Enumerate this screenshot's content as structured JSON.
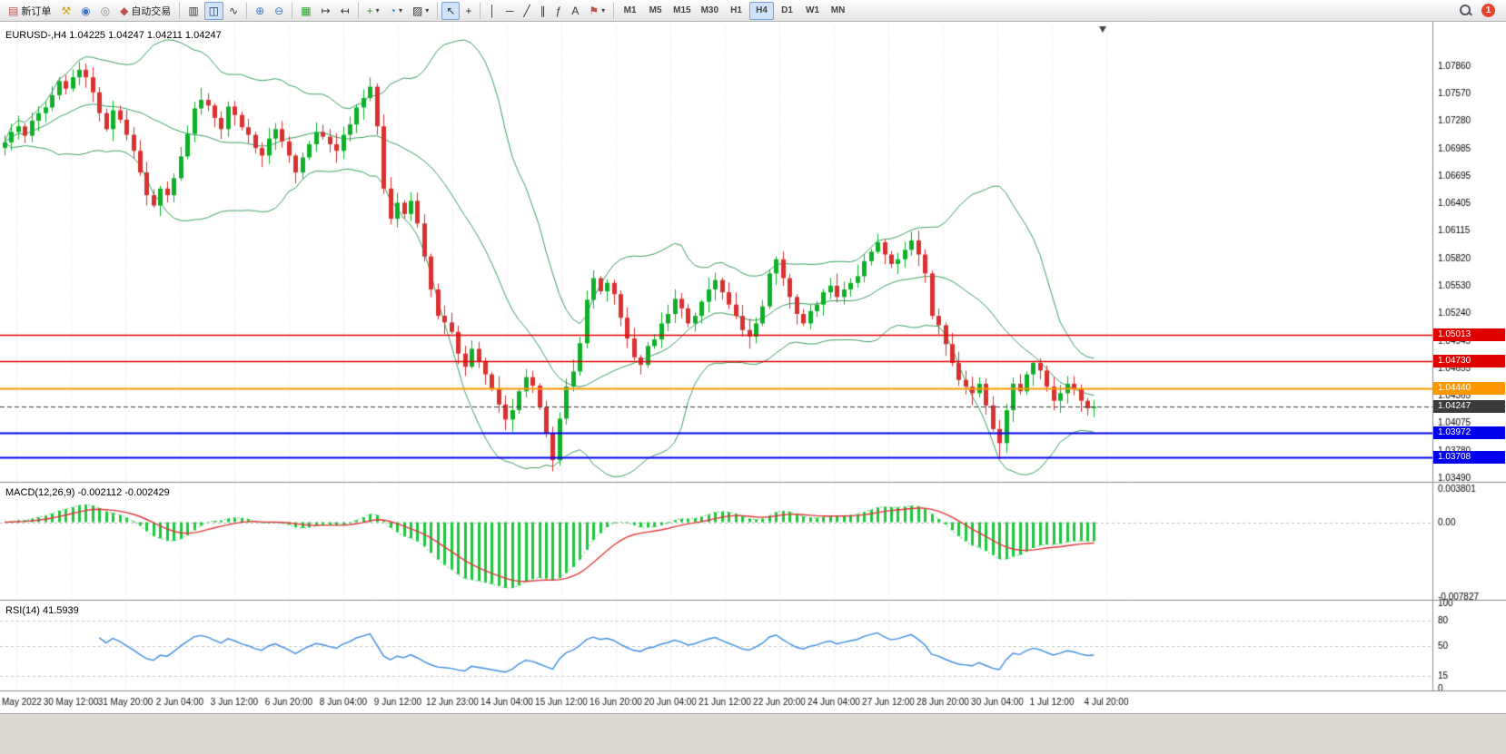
{
  "toolbar": {
    "new_order_label": "新订单",
    "auto_trading_label": "自动交易",
    "timeframes": [
      "M1",
      "M5",
      "M15",
      "M30",
      "H1",
      "H4",
      "D1",
      "W1",
      "MN"
    ],
    "active_timeframe": "H4",
    "notification_count": "1"
  },
  "icons": {
    "new_order": "▤",
    "metaeditor": "⚒",
    "market_watch": "◉",
    "community": "◎",
    "auto_trading": "◆",
    "bar_chart": "▥",
    "candlestick": "◫",
    "line_chart": "∿",
    "zoom_in": "⊕",
    "zoom_out": "⊖",
    "tile_windows": "▦",
    "auto_scroll": "↦",
    "chart_shift": "↤",
    "indicators": "+",
    "periods": "◔",
    "templates": "▨",
    "cursor": "↖",
    "crosshair": "+",
    "vertical_line": "│",
    "horizontal_line": "─",
    "trend_line": "╱",
    "channel": "∥",
    "fibonacci": "ƒ",
    "text": "A",
    "label_flag": "⚑",
    "caret": "▾"
  },
  "chart": {
    "title": "EURUSD-,H4 1.04225 1.04247 1.04211 1.04247",
    "symbol": "EURUSD-",
    "timeframe": "H4",
    "ohlc": {
      "open": "1.04225",
      "high": "1.04247",
      "low": "1.04211",
      "close": "1.04247"
    },
    "price_axis": [
      "1.07860",
      "1.07570",
      "1.07280",
      "1.06985",
      "1.06695",
      "1.06405",
      "1.06115",
      "1.05820",
      "1.05530",
      "1.05240",
      "1.04945",
      "1.04655",
      "1.04365",
      "1.04075",
      "1.03780",
      "1.03490"
    ],
    "price_range": {
      "min": 1.0346,
      "max": 1.0829
    },
    "levels": [
      {
        "price": 1.05013,
        "label": "1.05013",
        "color": "#e00000",
        "width": 1.4
      },
      {
        "price": 1.0473,
        "label": "1.04730",
        "color": "#e00000",
        "width": 1.4
      },
      {
        "price": 1.0444,
        "label": "1.04440",
        "color": "#ff9800",
        "width": 2
      },
      {
        "price": 1.04247,
        "label": "1.04247",
        "color": "#3c3c3c",
        "width": 1,
        "style": "dash"
      },
      {
        "price": 1.03972,
        "label": "1.03972",
        "color": "#0000ee",
        "width": 2
      },
      {
        "price": 1.03708,
        "label": "1.03708",
        "color": "#0000ee",
        "width": 2
      }
    ],
    "time_axis": [
      "May 2022",
      "30 May 12:00",
      "31 May 20:00",
      "2 Jun 04:00",
      "3 Jun 12:00",
      "6 Jun 20:00",
      "8 Jun 04:00",
      "9 Jun 12:00",
      "12 Jun 23:00",
      "14 Jun 04:00",
      "15 Jun 12:00",
      "16 Jun 20:00",
      "20 Jun 04:00",
      "21 Jun 12:00",
      "22 Jun 20:00",
      "24 Jun 04:00",
      "27 Jun 12:00",
      "28 Jun 20:00",
      "30 Jun 04:00",
      "1 Jul 12:00",
      "4 Jul 20:00"
    ]
  },
  "indicators": {
    "macd": {
      "label": "MACD(12,26,9) -0.002112 -0.002429",
      "name": "MACD",
      "params": "12,26,9",
      "value_main": "-0.002112",
      "value_signal": "-0.002429",
      "axis": [
        "0.003801",
        "0.00",
        "-0.007827"
      ],
      "range": [
        -0.00783,
        0.0038
      ]
    },
    "rsi": {
      "label": "RSI(14) 41.5939",
      "name": "RSI",
      "period": "14",
      "value": "41.5939",
      "axis": [
        "100",
        "80",
        "50",
        "15",
        "0"
      ],
      "levels": [
        80,
        50,
        15
      ]
    }
  },
  "chart_data": {
    "type": "candlestick",
    "symbol": "EURUSD",
    "timeframe": "H4",
    "overlays": [
      "Bollinger Bands(20,2)"
    ],
    "panels": [
      "MACD(12,26,9)",
      "RSI(14)"
    ],
    "closes": [
      1.0705,
      1.0716,
      1.0722,
      1.0712,
      1.0728,
      1.0736,
      1.0742,
      1.0755,
      1.077,
      1.0762,
      1.0774,
      1.0782,
      1.0774,
      1.0758,
      1.0736,
      1.0719,
      1.0739,
      1.0729,
      1.0713,
      1.0696,
      1.0673,
      1.0649,
      1.0638,
      1.0656,
      1.0649,
      1.0667,
      1.069,
      1.0714,
      1.0741,
      1.075,
      1.0744,
      1.0731,
      1.0719,
      1.0743,
      1.0734,
      1.0721,
      1.0713,
      1.0699,
      1.0691,
      1.0709,
      1.0719,
      1.0706,
      1.0691,
      1.0673,
      1.0689,
      1.0703,
      1.0716,
      1.0711,
      1.0703,
      1.0696,
      1.0713,
      1.0724,
      1.0742,
      1.0752,
      1.0764,
      1.0722,
      1.0656,
      1.0624,
      1.0641,
      1.0629,
      1.0643,
      1.0619,
      1.0584,
      1.0549,
      1.0521,
      1.0514,
      1.0504,
      1.0481,
      1.0467,
      1.0486,
      1.0473,
      1.0459,
      1.0444,
      1.0427,
      1.0411,
      1.0421,
      1.0441,
      1.0456,
      1.0447,
      1.0424,
      1.0397,
      1.0368,
      1.0412,
      1.0446,
      1.0462,
      1.0492,
      1.0538,
      1.0561,
      1.0547,
      1.0556,
      1.0544,
      1.0519,
      1.0497,
      1.0477,
      1.0469,
      1.0489,
      1.0496,
      1.0513,
      1.0523,
      1.0539,
      1.0529,
      1.0513,
      1.0521,
      1.0536,
      1.0549,
      1.0559,
      1.0546,
      1.0533,
      1.0521,
      1.0506,
      1.0499,
      1.0513,
      1.0531,
      1.0566,
      1.0581,
      1.0561,
      1.0541,
      1.0523,
      1.0513,
      1.0526,
      1.0533,
      1.0546,
      1.0553,
      1.0541,
      1.0549,
      1.0556,
      1.0563,
      1.0579,
      1.0589,
      1.0599,
      1.0586,
      1.0576,
      1.0581,
      1.0591,
      1.0601,
      1.0586,
      1.0566,
      1.0521,
      1.0511,
      1.0491,
      1.0471,
      1.0453,
      1.0446,
      1.0439,
      1.0449,
      1.0426,
      1.0401,
      1.0386,
      1.0421,
      1.0449,
      1.0441,
      1.0459,
      1.0471,
      1.0463,
      1.0446,
      1.0431,
      1.0439,
      1.0449,
      1.0443,
      1.0431,
      1.0423,
      1.04247
    ],
    "spike_lows": {
      "81": 1.0356,
      "147": 1.0369
    },
    "colors": {
      "bull": "#0faf2a",
      "bear": "#d93030",
      "bands": "#3aa05f",
      "macd_hist": "#1ec73e",
      "macd_signal": "#e23a3a",
      "rsi_line": "#3f8fe0",
      "grid": "#e2e2e2"
    }
  }
}
